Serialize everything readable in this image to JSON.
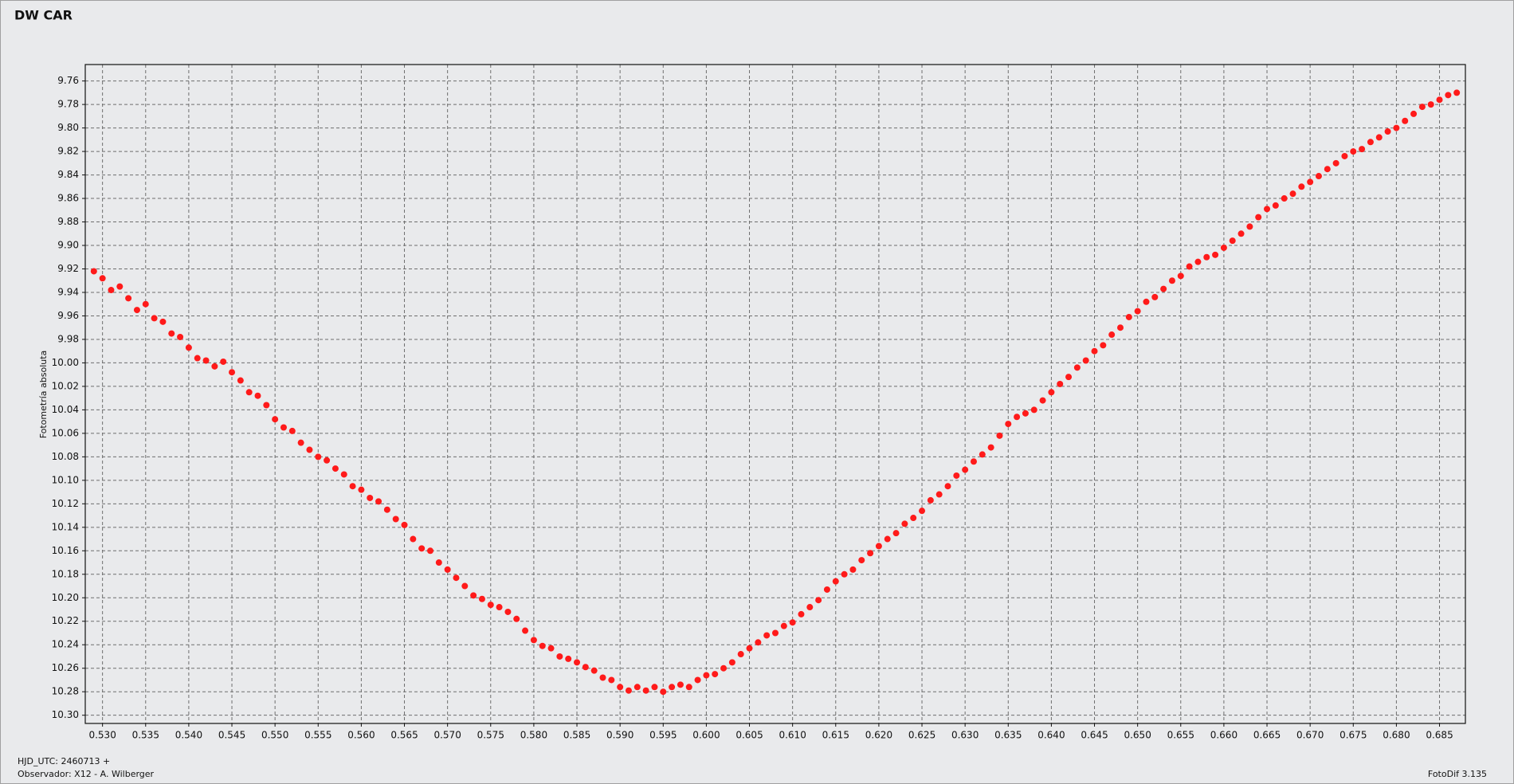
{
  "chart_data": {
    "type": "scatter",
    "title": "DW CAR",
    "y_label": "Fotometría absoluta",
    "footer_left": [
      "HJD_UTC: 2460713 +",
      "Observador: X12 - A. Wilberger"
    ],
    "footer_right": "FotoDif 3.135",
    "color": "#ff1a1a",
    "title_color": "#ff1a1a",
    "grid": true,
    "y_inverted": true,
    "xlim": [
      0.528,
      0.688
    ],
    "ylim": [
      9.746,
      10.307
    ],
    "xticks": [
      {
        "value": 0.53,
        "label": "0.530"
      },
      0.535,
      {
        "value": 0.54,
        "label": "0.540"
      },
      0.545,
      {
        "value": 0.55,
        "label": "0.550"
      },
      0.555,
      {
        "value": 0.56,
        "label": "0.560"
      },
      0.565,
      {
        "value": 0.57,
        "label": "0.570"
      },
      0.575,
      {
        "value": 0.58,
        "label": "0.580"
      },
      0.585,
      {
        "value": 0.59,
        "label": "0.590"
      },
      0.595,
      {
        "value": 0.6,
        "label": "0.600"
      },
      0.605,
      {
        "value": 0.61,
        "label": "0.610"
      },
      0.615,
      {
        "value": 0.62,
        "label": "0.620"
      },
      0.625,
      {
        "value": 0.63,
        "label": "0.630"
      },
      0.635,
      {
        "value": 0.64,
        "label": "0.640"
      },
      0.645,
      {
        "value": 0.65,
        "label": "0.650"
      },
      0.655,
      {
        "value": 0.66,
        "label": "0.660"
      },
      0.665,
      {
        "value": 0.67,
        "label": "0.670"
      },
      0.675,
      {
        "value": 0.68,
        "label": "0.680"
      },
      0.685
    ],
    "yticks": [
      9.76,
      9.78,
      {
        "value": 9.8,
        "label": "9.80"
      },
      9.82,
      9.84,
      9.86,
      9.88,
      {
        "value": 9.9,
        "label": "9.90"
      },
      9.92,
      9.94,
      9.96,
      9.98,
      {
        "value": 10,
        "label": "10.00"
      },
      10.02,
      10.04,
      10.06,
      10.08,
      {
        "value": 10.1,
        "label": "10.10"
      },
      10.12,
      10.14,
      10.16,
      10.18,
      {
        "value": 10.2,
        "label": "10.20"
      },
      10.22,
      10.24,
      10.26,
      10.28,
      {
        "value": 10.3,
        "label": "10.30"
      }
    ],
    "x": [
      0.529,
      0.53,
      0.531,
      0.532,
      0.533,
      0.534,
      0.535,
      0.536,
      0.537,
      0.538,
      0.539,
      0.54,
      0.541,
      0.542,
      0.543,
      0.544,
      0.545,
      0.546,
      0.547,
      0.548,
      0.549,
      0.55,
      0.551,
      0.552,
      0.553,
      0.554,
      0.555,
      0.556,
      0.557,
      0.558,
      0.559,
      0.56,
      0.561,
      0.562,
      0.563,
      0.564,
      0.565,
      0.566,
      0.567,
      0.568,
      0.569,
      0.57,
      0.571,
      0.572,
      0.573,
      0.574,
      0.575,
      0.576,
      0.577,
      0.578,
      0.579,
      0.58,
      0.581,
      0.582,
      0.583,
      0.584,
      0.585,
      0.586,
      0.587,
      0.588,
      0.589,
      0.59,
      0.591,
      0.592,
      0.593,
      0.594,
      0.595,
      0.596,
      0.597,
      0.598,
      0.599,
      0.6,
      0.601,
      0.602,
      0.603,
      0.604,
      0.605,
      0.606,
      0.607,
      0.608,
      0.609,
      0.61,
      0.611,
      0.612,
      0.613,
      0.614,
      0.615,
      0.616,
      0.617,
      0.618,
      0.619,
      0.62,
      0.621,
      0.622,
      0.623,
      0.624,
      0.625,
      0.626,
      0.627,
      0.628,
      0.629,
      0.63,
      0.631,
      0.632,
      0.633,
      0.634,
      0.635,
      0.636,
      0.637,
      0.638,
      0.639,
      0.64,
      0.641,
      0.642,
      0.643,
      0.644,
      0.645,
      0.646,
      0.647,
      0.648,
      0.649,
      0.65,
      0.651,
      0.652,
      0.653,
      0.654,
      0.655,
      0.656,
      0.657,
      0.658,
      0.659,
      0.66,
      0.661,
      0.662,
      0.663,
      0.664,
      0.665,
      0.666,
      0.667,
      0.668,
      0.669,
      0.67,
      0.671,
      0.672,
      0.673,
      0.674,
      0.675,
      0.676,
      0.677,
      0.678,
      0.679,
      0.68,
      0.681,
      0.682,
      0.683,
      0.684,
      0.685,
      0.686,
      0.687
    ],
    "values": [
      9.922,
      9.928,
      9.938,
      9.935,
      9.945,
      9.955,
      9.95,
      9.962,
      9.965,
      9.975,
      9.978,
      9.987,
      9.996,
      9.998,
      10.003,
      9.999,
      10.008,
      10.015,
      10.025,
      10.028,
      10.036,
      10.048,
      10.055,
      10.058,
      10.068,
      10.074,
      10.08,
      10.083,
      10.09,
      10.095,
      10.105,
      10.108,
      10.115,
      10.118,
      10.125,
      10.133,
      10.138,
      10.15,
      10.158,
      10.16,
      10.17,
      10.176,
      10.183,
      10.19,
      10.198,
      10.201,
      10.206,
      10.208,
      10.212,
      10.218,
      10.228,
      10.236,
      10.241,
      10.243,
      10.25,
      10.252,
      10.255,
      10.259,
      10.262,
      10.268,
      10.27,
      10.276,
      10.279,
      10.276,
      10.279,
      10.276,
      10.28,
      10.276,
      10.274,
      10.276,
      10.27,
      10.266,
      10.265,
      10.26,
      10.255,
      10.248,
      10.243,
      10.238,
      10.232,
      10.23,
      10.224,
      10.221,
      10.214,
      10.208,
      10.202,
      10.193,
      10.186,
      10.18,
      10.176,
      10.168,
      10.162,
      10.156,
      10.15,
      10.145,
      10.137,
      10.132,
      10.126,
      10.117,
      10.112,
      10.105,
      10.096,
      10.091,
      10.084,
      10.078,
      10.072,
      10.062,
      10.052,
      10.046,
      10.043,
      10.04,
      10.032,
      10.025,
      10.018,
      10.012,
      10.004,
      9.998,
      9.99,
      9.985,
      9.976,
      9.97,
      9.961,
      9.956,
      9.948,
      9.944,
      9.937,
      9.93,
      9.926,
      9.918,
      9.914,
      9.91,
      9.908,
      9.902,
      9.896,
      9.89,
      9.884,
      9.876,
      9.869,
      9.866,
      9.86,
      9.856,
      9.85,
      9.846,
      9.841,
      9.835,
      9.83,
      9.824,
      9.82,
      9.818,
      9.812,
      9.808,
      9.803,
      9.8,
      9.794,
      9.788,
      9.782,
      9.78,
      9.776,
      9.772,
      9.77
    ]
  }
}
